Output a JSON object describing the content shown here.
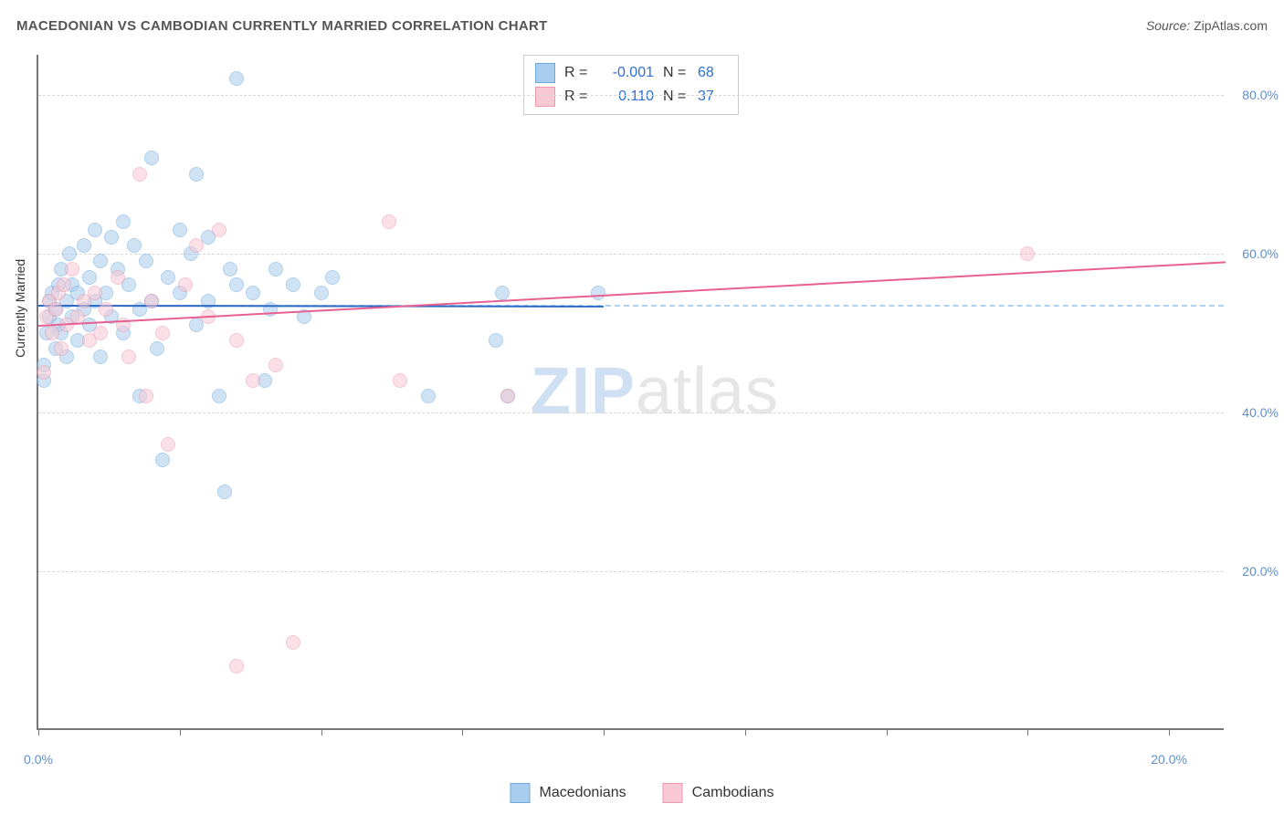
{
  "title": "MACEDONIAN VS CAMBODIAN CURRENTLY MARRIED CORRELATION CHART",
  "source": {
    "label": "Source: ",
    "value": "ZipAtlas.com"
  },
  "y_axis_title": "Currently Married",
  "watermark": {
    "part1": "ZIP",
    "part2": "atlas"
  },
  "colors": {
    "blue_fill": "#a9cdee",
    "blue_stroke": "#6fa9dd",
    "pink_fill": "#f8c9d4",
    "pink_stroke": "#ec98af",
    "trend_blue": "#2a69c4",
    "trend_pink": "#e85f91",
    "tick_text": "#5f8fcf",
    "grid": "#d7d7d7"
  },
  "chart": {
    "type": "scatter",
    "xlim": [
      0,
      21
    ],
    "ylim": [
      0,
      85
    ],
    "x_ticks": [
      0,
      2.5,
      5,
      7.5,
      10,
      12.5,
      15,
      17.5,
      20
    ],
    "x_tick_labels": {
      "0": "0.0%",
      "20": "20.0%"
    },
    "y_gridlines": [
      20,
      40,
      60,
      80
    ],
    "y_tick_labels": {
      "20": "20.0%",
      "40": "40.0%",
      "60": "60.0%",
      "80": "80.0%"
    },
    "dashed_ref_y": 53.5,
    "marker_radius": 8,
    "marker_opacity": 0.55,
    "series": [
      {
        "name": "Macedonians",
        "color_key": "blue",
        "R": "-0.001",
        "N": "68",
        "trend": {
          "x1": 0,
          "y1": 53.5,
          "x2": 10,
          "y2": 53.4
        },
        "points": [
          [
            0.1,
            44
          ],
          [
            0.1,
            46
          ],
          [
            0.15,
            50
          ],
          [
            0.2,
            52
          ],
          [
            0.2,
            54
          ],
          [
            0.25,
            55
          ],
          [
            0.3,
            53
          ],
          [
            0.3,
            48
          ],
          [
            0.35,
            51
          ],
          [
            0.35,
            56
          ],
          [
            0.4,
            58
          ],
          [
            0.4,
            50
          ],
          [
            0.5,
            54
          ],
          [
            0.5,
            47
          ],
          [
            0.55,
            60
          ],
          [
            0.6,
            52
          ],
          [
            0.6,
            56
          ],
          [
            0.7,
            55
          ],
          [
            0.7,
            49
          ],
          [
            0.8,
            61
          ],
          [
            0.8,
            53
          ],
          [
            0.9,
            57
          ],
          [
            0.9,
            51
          ],
          [
            1.0,
            63
          ],
          [
            1.0,
            54
          ],
          [
            1.1,
            59
          ],
          [
            1.1,
            47
          ],
          [
            1.2,
            55
          ],
          [
            1.3,
            62
          ],
          [
            1.3,
            52
          ],
          [
            1.4,
            58
          ],
          [
            1.5,
            64
          ],
          [
            1.5,
            50
          ],
          [
            1.6,
            56
          ],
          [
            1.7,
            61
          ],
          [
            1.8,
            53
          ],
          [
            1.8,
            42
          ],
          [
            1.9,
            59
          ],
          [
            2.0,
            72
          ],
          [
            2.0,
            54
          ],
          [
            2.1,
            48
          ],
          [
            2.2,
            34
          ],
          [
            2.3,
            57
          ],
          [
            2.5,
            63
          ],
          [
            2.5,
            55
          ],
          [
            2.7,
            60
          ],
          [
            2.8,
            51
          ],
          [
            2.8,
            70
          ],
          [
            3.0,
            62
          ],
          [
            3.0,
            54
          ],
          [
            3.2,
            42
          ],
          [
            3.3,
            30
          ],
          [
            3.4,
            58
          ],
          [
            3.5,
            56
          ],
          [
            3.5,
            82
          ],
          [
            3.8,
            55
          ],
          [
            4.0,
            44
          ],
          [
            4.1,
            53
          ],
          [
            4.2,
            58
          ],
          [
            4.5,
            56
          ],
          [
            4.7,
            52
          ],
          [
            5.0,
            55
          ],
          [
            5.2,
            57
          ],
          [
            6.9,
            42
          ],
          [
            8.1,
            49
          ],
          [
            8.2,
            55
          ],
          [
            8.3,
            42
          ],
          [
            9.9,
            55
          ]
        ]
      },
      {
        "name": "Cambodians",
        "color_key": "pink",
        "R": "0.110",
        "N": "37",
        "trend": {
          "x1": 0,
          "y1": 51,
          "x2": 21,
          "y2": 59
        },
        "points": [
          [
            0.1,
            45
          ],
          [
            0.15,
            52
          ],
          [
            0.2,
            54
          ],
          [
            0.25,
            50
          ],
          [
            0.3,
            53
          ],
          [
            0.35,
            55
          ],
          [
            0.4,
            48
          ],
          [
            0.45,
            56
          ],
          [
            0.5,
            51
          ],
          [
            0.6,
            58
          ],
          [
            0.7,
            52
          ],
          [
            0.8,
            54
          ],
          [
            0.9,
            49
          ],
          [
            1.0,
            55
          ],
          [
            1.1,
            50
          ],
          [
            1.2,
            53
          ],
          [
            1.4,
            57
          ],
          [
            1.5,
            51
          ],
          [
            1.6,
            47
          ],
          [
            1.8,
            70
          ],
          [
            1.9,
            42
          ],
          [
            2.0,
            54
          ],
          [
            2.2,
            50
          ],
          [
            2.3,
            36
          ],
          [
            2.6,
            56
          ],
          [
            2.8,
            61
          ],
          [
            3.0,
            52
          ],
          [
            3.2,
            63
          ],
          [
            3.5,
            49
          ],
          [
            3.5,
            8
          ],
          [
            3.8,
            44
          ],
          [
            4.2,
            46
          ],
          [
            4.5,
            11
          ],
          [
            6.2,
            64
          ],
          [
            6.4,
            44
          ],
          [
            8.3,
            42
          ],
          [
            17.5,
            60
          ]
        ]
      }
    ]
  },
  "bottom_legend": [
    {
      "label": "Macedonians",
      "color_key": "blue"
    },
    {
      "label": "Cambodians",
      "color_key": "pink"
    }
  ]
}
